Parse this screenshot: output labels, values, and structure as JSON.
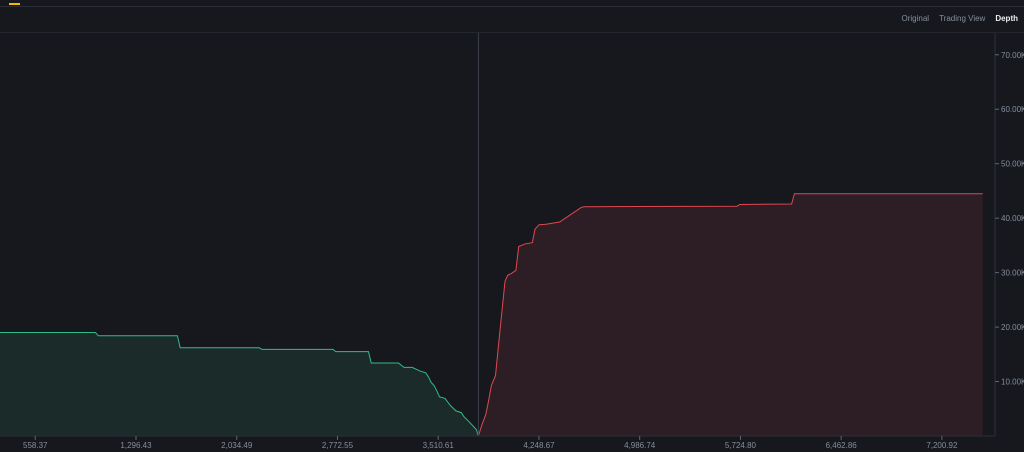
{
  "view_tabs": [
    {
      "label": "Original",
      "active": false
    },
    {
      "label": "Trading View",
      "active": false
    },
    {
      "label": "Depth",
      "active": true
    }
  ],
  "colors": {
    "background": "#17181e",
    "bid_line": "#2ebd85",
    "bid_fill": "#1a2b2a",
    "ask_line": "#e0474f",
    "ask_fill": "#2d1e26",
    "tab_indicator": "#f0b90b"
  },
  "chart_data": {
    "type": "area",
    "title": "",
    "xlabel": "",
    "ylabel": "",
    "x_tick_labels": [
      "558.37",
      "1,296.43",
      "2,034.49",
      "2,772.55",
      "3,510.61",
      "4,248.67",
      "4,986.74",
      "5,724.80",
      "6,462.86",
      "7,200.92"
    ],
    "y_tick_labels": [
      "10.00K",
      "20.00K",
      "30.00K",
      "40.00K",
      "50.00K",
      "60.00K",
      "70.00K"
    ],
    "xlim": [
      300,
      7590
    ],
    "ylim": [
      0,
      74000
    ],
    "grid": false,
    "mid_price": 3805,
    "series": [
      {
        "side": "bids",
        "x": [
          300,
          1000,
          1020,
          1600,
          1620,
          2200,
          2220,
          2740,
          2760,
          3000,
          3020,
          3220,
          3260,
          3320,
          3380,
          3420,
          3440,
          3460,
          3480,
          3500,
          3520,
          3560,
          3600,
          3640,
          3680,
          3700,
          3730,
          3760,
          3790,
          3805
        ],
        "y": [
          19000,
          19000,
          18400,
          18400,
          16200,
          16200,
          15900,
          15900,
          15500,
          15500,
          13400,
          13400,
          12600,
          12600,
          11900,
          11600,
          10800,
          9800,
          9300,
          8300,
          7200,
          6900,
          5600,
          4600,
          4300,
          3500,
          2800,
          2000,
          1200,
          0
        ]
      },
      {
        "side": "asks",
        "x": [
          3805,
          3830,
          3860,
          3880,
          3900,
          3930,
          3960,
          4000,
          4020,
          4050,
          4080,
          4100,
          4150,
          4200,
          4220,
          4250,
          4300,
          4400,
          4560,
          4580,
          5700,
          5720,
          6100,
          6120,
          7500
        ],
        "y": [
          0,
          2000,
          4000,
          6500,
          9300,
          11100,
          18500,
          28400,
          29500,
          29900,
          30400,
          34800,
          35300,
          35500,
          38000,
          38800,
          38900,
          39300,
          42000,
          42100,
          42200,
          42500,
          42600,
          44500,
          44500
        ]
      }
    ]
  }
}
